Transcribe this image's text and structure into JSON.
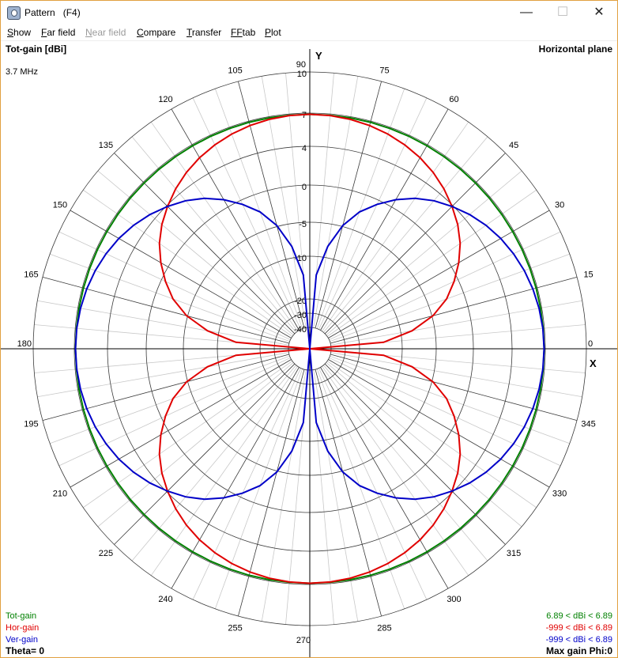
{
  "window": {
    "title": "Pattern   (F4)",
    "minimize": "—",
    "maximize": "☐",
    "close": "✕"
  },
  "menu": [
    {
      "label": "Show",
      "ul": "S",
      "rest": "how",
      "disabled": false
    },
    {
      "label": "Far field",
      "ul": "F",
      "rest": "ar field",
      "disabled": false
    },
    {
      "label": "Near field",
      "ul": "N",
      "rest": "ear field",
      "disabled": true
    },
    {
      "label": "Compare",
      "ul": "C",
      "rest": "ompare",
      "disabled": false
    },
    {
      "label": "Transfer",
      "ul": "T",
      "rest": "ransfer",
      "disabled": false
    },
    {
      "label": "FFtab",
      "ul": "FF",
      "rest": "tab",
      "disabled": false
    },
    {
      "label": "Plot",
      "ul": "P",
      "rest": "lot",
      "disabled": false
    }
  ],
  "header": {
    "gain_title": "Tot-gain [dBi]",
    "frequency": "3.7 MHz",
    "plane": "Horizontal plane"
  },
  "axes": {
    "x_label": "X",
    "y_label": "Y"
  },
  "footer": {
    "theta": "Theta= 0",
    "max_gain": "Max gain Phi:0"
  },
  "legend": [
    {
      "name": "Tot-gain",
      "range": "6.89 < dBi < 6.89",
      "color": "#008000"
    },
    {
      "name": "Hor-gain",
      "range": "-999 < dBi < 6.89",
      "color": "#e00000"
    },
    {
      "name": "Ver-gain",
      "range": "-999 < dBi < 6.89",
      "color": "#0000c8"
    }
  ],
  "chart_data": {
    "type": "polar",
    "plane": "horizontal",
    "radial_unit": "dBi",
    "radial_ticks": [
      {
        "label": "10",
        "dbi": 10
      },
      {
        "label": "7",
        "dbi": 7
      },
      {
        "label": "4",
        "dbi": 4
      },
      {
        "label": "0",
        "dbi": 0
      },
      {
        "label": "-5",
        "dbi": -5
      },
      {
        "label": "-10",
        "dbi": -10
      },
      {
        "label": "-20",
        "dbi": -20
      },
      {
        "label": "-30",
        "dbi": -30
      },
      {
        "label": "-40",
        "dbi": -40
      }
    ],
    "angle_ticks_deg": [
      0,
      15,
      30,
      45,
      60,
      75,
      90,
      105,
      120,
      135,
      150,
      165,
      180,
      195,
      210,
      225,
      240,
      255,
      270,
      285,
      300,
      315,
      330,
      345
    ],
    "series": [
      {
        "name": "Tot-gain",
        "max_dbi": 6.89,
        "pattern": "omnidirectional"
      },
      {
        "name": "Hor-gain",
        "max_dbi": 6.89,
        "pattern": "sin(phi)",
        "peak_phi_deg": [
          90,
          270
        ]
      },
      {
        "name": "Ver-gain",
        "max_dbi": 6.89,
        "pattern": "cos(phi)",
        "peak_phi_deg": [
          0,
          180
        ]
      }
    ]
  }
}
